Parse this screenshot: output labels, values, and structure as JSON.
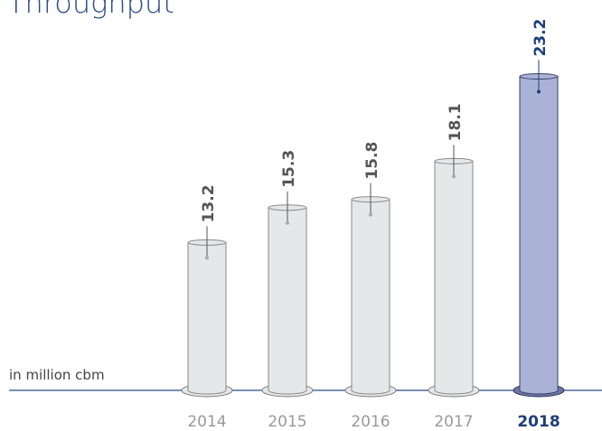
{
  "chart_data": {
    "type": "cylinder_bar",
    "title": "Throughput",
    "y_label": "in million cbm",
    "categories": [
      "2014",
      "2015",
      "2016",
      "2017",
      "2018"
    ],
    "values": [
      13.2,
      15.3,
      15.8,
      18.1,
      23.2
    ],
    "colors": [
      "#e6e7e8",
      "#e6e7e8",
      "#e6e7e8",
      "#e6e7e8",
      "#aab2d6"
    ],
    "text_colors": [
      "#555555",
      "#555555",
      "#555555",
      "#555555",
      "#1f3d7a"
    ],
    "ylim": [
      4.3,
      27.8
    ]
  }
}
